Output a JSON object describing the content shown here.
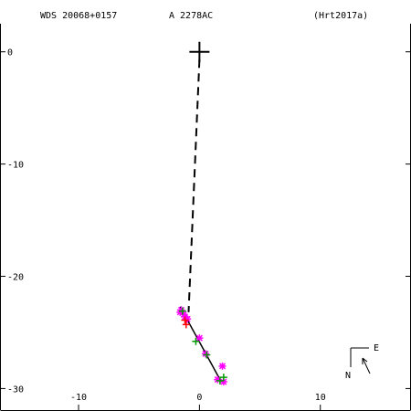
{
  "chart_data": {
    "type": "scatter",
    "header": {
      "left": "WDS 20068+0157",
      "center": "A  2278AC",
      "right": "(Hrt2017a)"
    },
    "x_ticks": [
      -10,
      0,
      10
    ],
    "y_ticks": [
      0,
      -10,
      -20,
      -30
    ],
    "xlim": [
      -16.5,
      17.5
    ],
    "ylim": [
      -32.0,
      2.5
    ],
    "primary": {
      "x": 0.0,
      "y": 0.0,
      "marker": "plus"
    },
    "dashed_line": {
      "from": [
        0.0,
        -0.7
      ],
      "to": [
        -0.9,
        -23.2
      ]
    },
    "orbit_line": {
      "from": [
        -1.6,
        -22.7
      ],
      "to": [
        1.8,
        -29.4
      ]
    },
    "series": [
      {
        "marker": "asterisk",
        "color": "#ff00ff",
        "points": [
          [
            -1.5,
            -23.0
          ],
          [
            -1.3,
            -23.4
          ],
          [
            -1.2,
            -23.6
          ],
          [
            -1.6,
            -23.2
          ],
          [
            -1.0,
            -23.8
          ],
          [
            0.0,
            -25.5
          ],
          [
            0.5,
            -26.9
          ],
          [
            1.9,
            -28.0
          ],
          [
            1.5,
            -29.2
          ],
          [
            2.0,
            -29.4
          ]
        ]
      },
      {
        "marker": "plus",
        "color": "#009900",
        "points": [
          [
            -1.4,
            -23.1
          ],
          [
            -0.3,
            -25.8
          ],
          [
            0.6,
            -27.0
          ],
          [
            2.0,
            -29.0
          ],
          [
            1.7,
            -29.3
          ]
        ]
      },
      {
        "marker": "plus",
        "color": "#ff0000",
        "points": [
          [
            -1.2,
            -23.9
          ],
          [
            -1.1,
            -24.3
          ]
        ]
      }
    ],
    "compass": {
      "north": "N",
      "east": "E"
    }
  }
}
